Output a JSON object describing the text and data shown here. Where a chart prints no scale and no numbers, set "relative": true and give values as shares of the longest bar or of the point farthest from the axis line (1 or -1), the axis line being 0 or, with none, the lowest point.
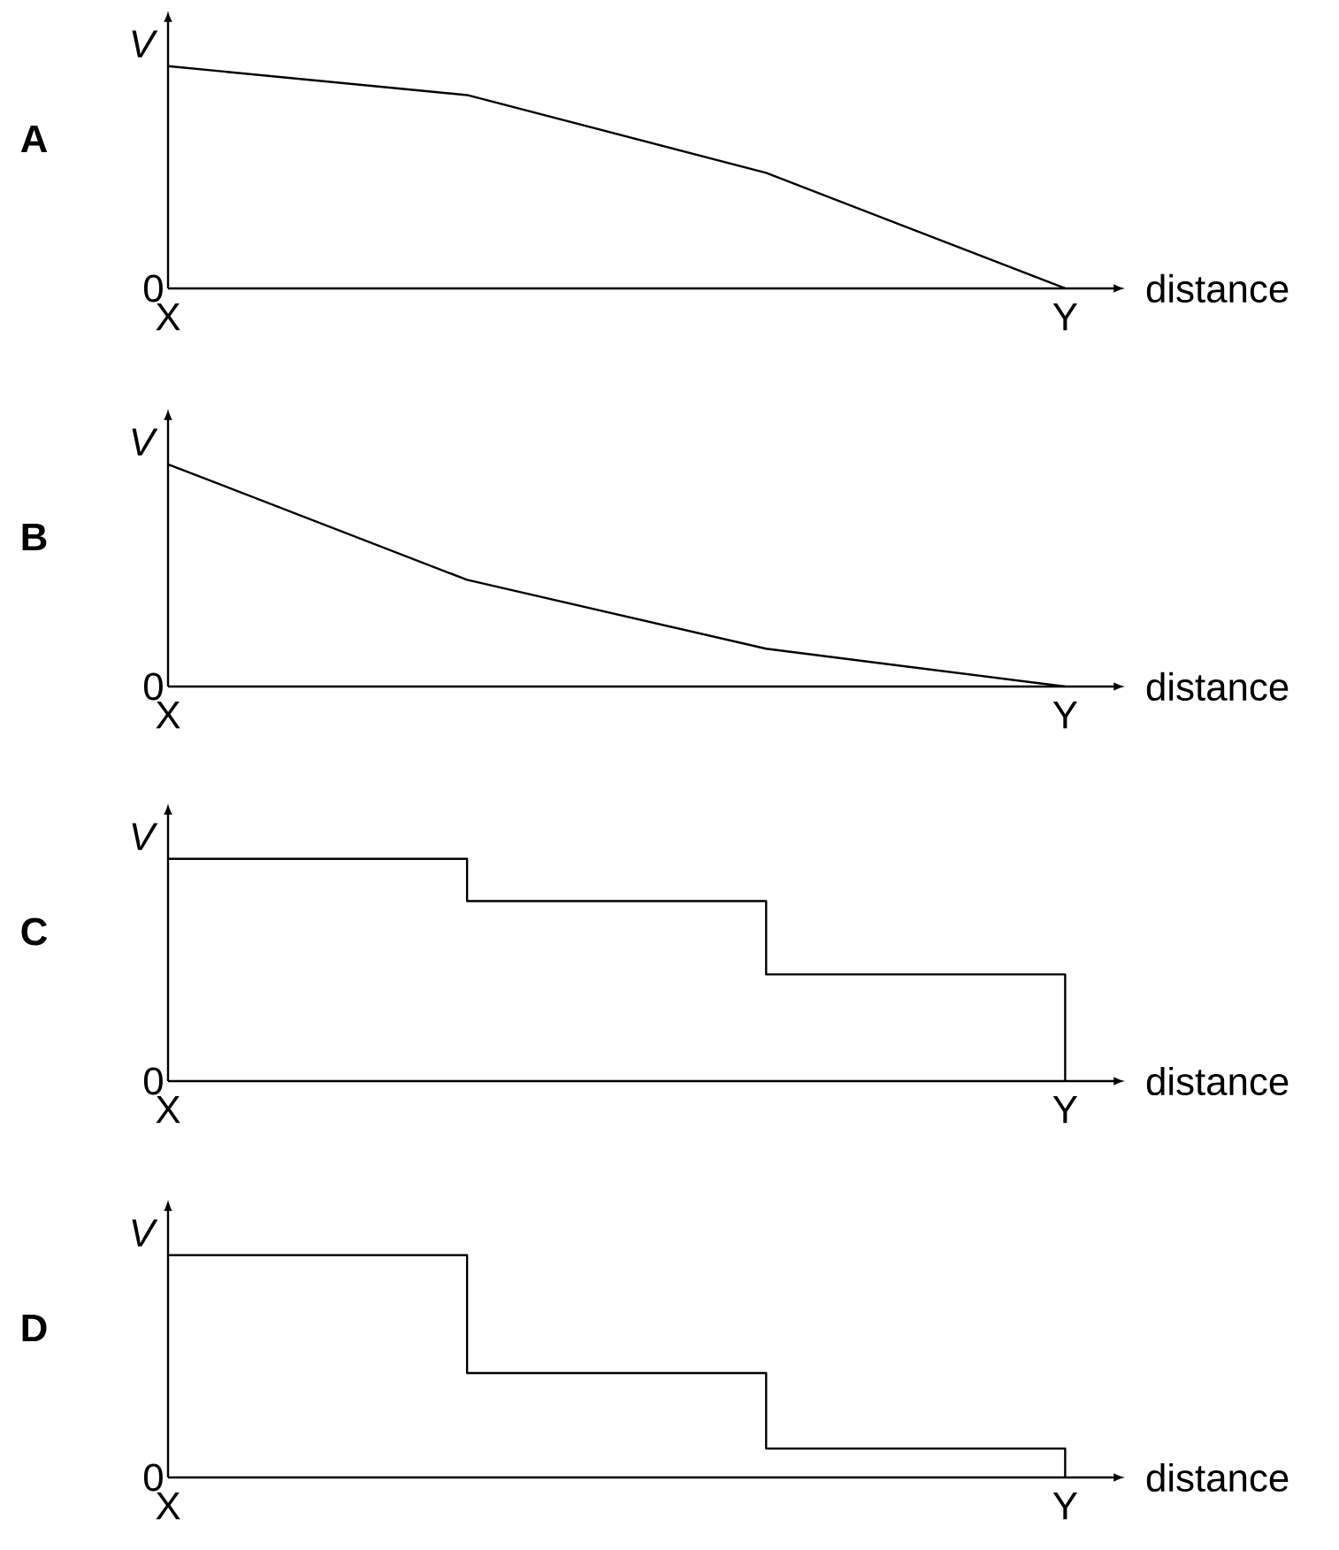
{
  "chart_data": [
    {
      "type": "line",
      "title": "A",
      "xlabel": "distance",
      "ylabel": "V",
      "categories": [
        "X",
        null,
        null,
        "Y"
      ],
      "values": [
        1,
        0.87,
        0.52,
        0
      ],
      "relative": true,
      "color": "#000000",
      "annotations": [
        "0"
      ]
    },
    {
      "type": "line",
      "title": "B",
      "xlabel": "distance",
      "ylabel": "V",
      "categories": [
        "X",
        null,
        null,
        "Y"
      ],
      "values": [
        1,
        0.48,
        0.17,
        0
      ],
      "relative": true,
      "color": "#000000",
      "annotations": [
        "0"
      ]
    },
    {
      "type": "step",
      "title": "C",
      "xlabel": "distance",
      "ylabel": "V",
      "categories": [
        "X",
        null,
        null,
        "Y"
      ],
      "values": [
        1,
        0.81,
        0.48,
        0
      ],
      "relative": true,
      "color": "#000000",
      "annotations": [
        "0"
      ]
    },
    {
      "type": "step",
      "title": "D",
      "xlabel": "distance",
      "ylabel": "V",
      "categories": [
        "X",
        null,
        null,
        "Y"
      ],
      "values": [
        1,
        0.47,
        0.13,
        0
      ],
      "relative": true,
      "color": "#000000",
      "annotations": [
        "0"
      ]
    }
  ]
}
